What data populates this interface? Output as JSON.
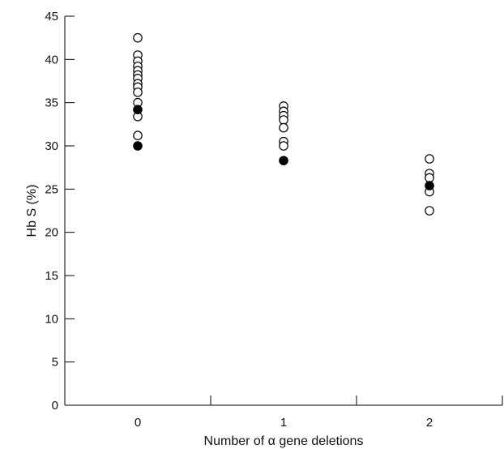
{
  "chart_data": {
    "type": "scatter",
    "xlabel": "Number of α gene deletions",
    "ylabel": "Hb S (%)",
    "categories": [
      "0",
      "1",
      "2"
    ],
    "ylim": [
      0,
      45
    ],
    "yticks": [
      0,
      5,
      10,
      15,
      20,
      25,
      30,
      35,
      40,
      45
    ],
    "grid": false,
    "series": [
      {
        "marker": "open-circle",
        "points": [
          {
            "x": 0,
            "y": 42.5
          },
          {
            "x": 0,
            "y": 40.5
          },
          {
            "x": 0,
            "y": 39.8
          },
          {
            "x": 0,
            "y": 39.2
          },
          {
            "x": 0,
            "y": 38.7
          },
          {
            "x": 0,
            "y": 38.2
          },
          {
            "x": 0,
            "y": 37.8
          },
          {
            "x": 0,
            "y": 37.2
          },
          {
            "x": 0,
            "y": 36.8
          },
          {
            "x": 0,
            "y": 36.2
          },
          {
            "x": 0,
            "y": 35.0
          },
          {
            "x": 0,
            "y": 33.4
          },
          {
            "x": 0,
            "y": 31.2
          },
          {
            "x": 1,
            "y": 34.6
          },
          {
            "x": 1,
            "y": 34.0
          },
          {
            "x": 1,
            "y": 33.5
          },
          {
            "x": 1,
            "y": 33.0
          },
          {
            "x": 1,
            "y": 32.1
          },
          {
            "x": 1,
            "y": 30.5
          },
          {
            "x": 1,
            "y": 30.0
          },
          {
            "x": 2,
            "y": 28.5
          },
          {
            "x": 2,
            "y": 26.8
          },
          {
            "x": 2,
            "y": 26.3
          },
          {
            "x": 2,
            "y": 24.7
          },
          {
            "x": 2,
            "y": 22.5
          }
        ]
      },
      {
        "marker": "filled-circle",
        "points": [
          {
            "x": 0,
            "y": 34.2
          },
          {
            "x": 0,
            "y": 30.0
          },
          {
            "x": 1,
            "y": 28.3
          },
          {
            "x": 2,
            "y": 25.4
          }
        ]
      }
    ]
  }
}
